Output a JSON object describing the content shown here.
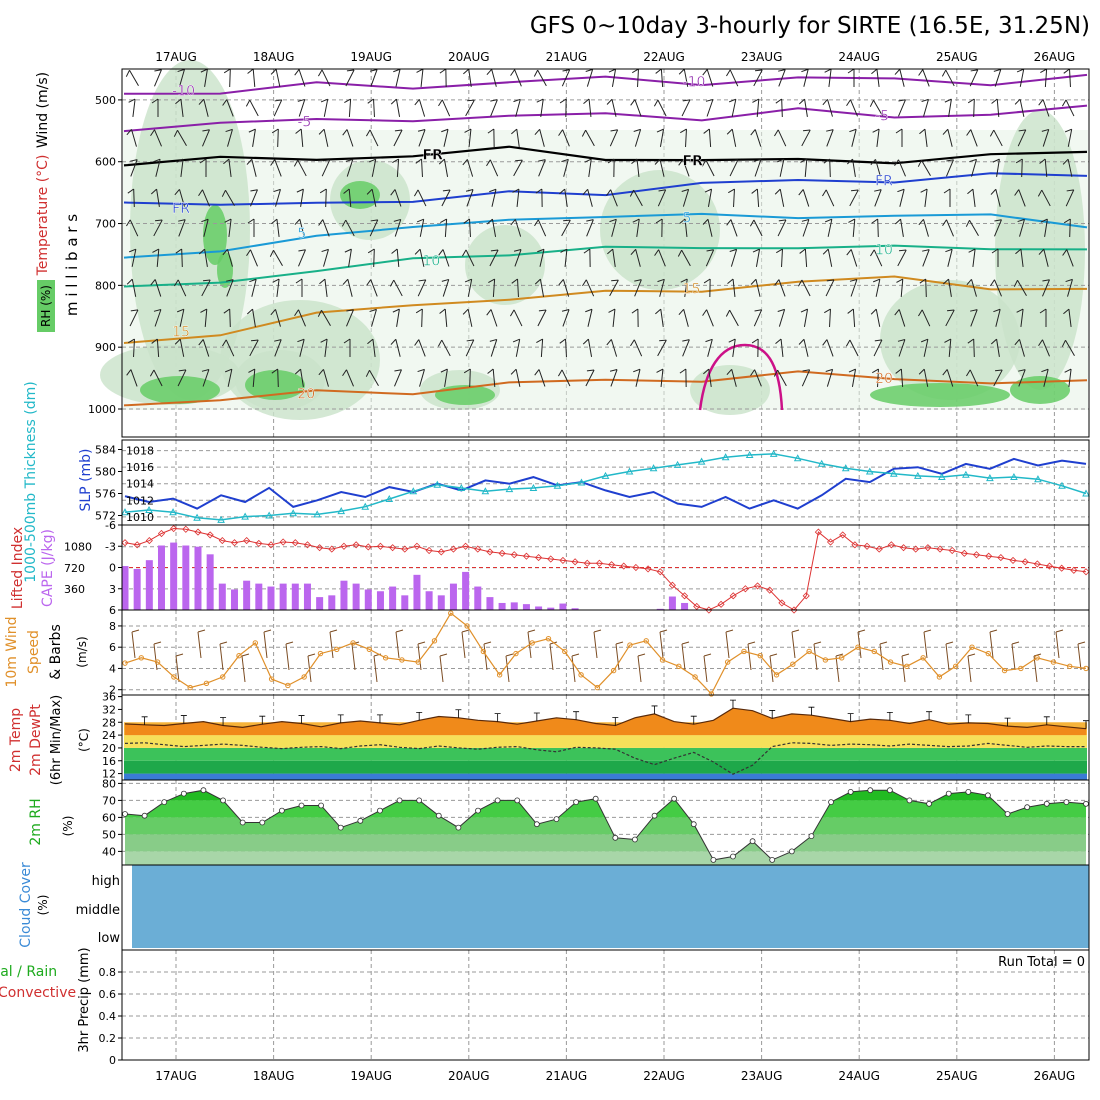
{
  "title": "GFS 0~10day 3-hourly for SIRTE (16.5E, 31.25N)",
  "x_axis": {
    "dates": [
      "17AUG",
      "18AUG",
      "19AUG",
      "20AUG",
      "21AUG",
      "22AUG",
      "23AUG",
      "24AUG",
      "25AUG",
      "26AUG"
    ]
  },
  "colors": {
    "frame": "#000000",
    "grid": "#9a9a9a",
    "rh_green_light": "#e6f2e6",
    "rh_green_mid": "#c9e2c9",
    "rh_green_dark": "#66cc66",
    "cloud_fill": "#6baed6",
    "rh_fill": "#22cc22",
    "temp_fill": "#f08a1a",
    "dew_fill": "#22aa44",
    "cape_bar": "#bb66ee",
    "lifted": "#dd3333",
    "slp": "#1f3fcf",
    "thickness": "#22b8c8",
    "wind_speed": "#e0902a"
  },
  "chart_data": [
    {
      "type": "area",
      "name": "upper_air",
      "ylabel_parts": [
        "Wind (m/s)",
        "Temperature (°C)",
        "m i l l i b a r s",
        "RH (%)"
      ],
      "yticks": [
        "500",
        "600",
        "700",
        "800",
        "900",
        "1000"
      ],
      "ylim": [
        450,
        1000
      ],
      "isotherm_labels": [
        "-10",
        "-10",
        "-5",
        "-5",
        "FR",
        "FR",
        "FR",
        "FR",
        "5",
        "5",
        "10",
        "10",
        "15",
        "15",
        "20",
        "20",
        "25"
      ],
      "isotherms": [
        {
          "label": "-10",
          "color": "#8a1fa8",
          "pressure": [
            490,
            485,
            478,
            478,
            470,
            468,
            470,
            466,
            468,
            470,
            465
          ]
        },
        {
          "label": "-5",
          "color": "#8a1fa8",
          "pressure": [
            545,
            538,
            535,
            528,
            530,
            522,
            528,
            520,
            525,
            522,
            515
          ]
        },
        {
          "label": "FR",
          "color": "#000000",
          "pressure": [
            600,
            598,
            595,
            588,
            582,
            592,
            598,
            600,
            596,
            592,
            585
          ]
        },
        {
          "label": "5",
          "color": "#1f3fcf",
          "pressure": [
            665,
            675,
            660,
            668,
            650,
            648,
            640,
            628,
            630,
            625,
            618
          ]
        },
        {
          "label": "10",
          "color": "#1a9ad6",
          "pressure": [
            760,
            745,
            715,
            712,
            690,
            688,
            690,
            685,
            690,
            688,
            700
          ]
        },
        {
          "label": "15",
          "color": "#18b088",
          "pressure": [
            808,
            790,
            778,
            760,
            745,
            742,
            740,
            735,
            742,
            738,
            740
          ]
        },
        {
          "label": "20",
          "color": "#d08a20",
          "pressure": [
            895,
            875,
            850,
            830,
            820,
            815,
            805,
            795,
            790,
            800,
            810
          ]
        },
        {
          "label": "25",
          "color": "#d06a20",
          "pressure": [
            990,
            985,
            975,
            970,
            960,
            955,
            950,
            945,
            950,
            955,
            960
          ]
        }
      ]
    },
    {
      "type": "line",
      "name": "slp_thickness",
      "ylabel_left": "1000-500mb Thickness (dm)",
      "ylabel_right": "SLP (mb)",
      "yticks_left": [
        "572",
        "576",
        "580",
        "584"
      ],
      "yticks_right": [
        "1010",
        "1012",
        "1014",
        "1016",
        "1018"
      ],
      "ylim_left": [
        571,
        585
      ],
      "ylim_right": [
        1009.5,
        1018.8
      ],
      "series": [
        {
          "name": "SLP",
          "unit": "mb",
          "values": [
            1012.5,
            1011.8,
            1012.2,
            1011.0,
            1012.6,
            1011.8,
            1013.5,
            1011.2,
            1012.0,
            1013.0,
            1012.4,
            1013.6,
            1013.0,
            1014.0,
            1013.2,
            1014.4,
            1014.0,
            1014.8,
            1013.8,
            1014.2,
            1013.2,
            1012.4,
            1013.0,
            1011.6,
            1011.2,
            1012.4,
            1011.0,
            1012.0,
            1011.0,
            1012.6,
            1014.6,
            1014.2,
            1015.8,
            1016.0,
            1015.2,
            1016.4,
            1015.8,
            1017.0,
            1016.2,
            1016.8,
            1016.4
          ]
        },
        {
          "name": "Thickness",
          "unit": "dm",
          "values": [
            572.6,
            573.0,
            572.6,
            571.6,
            571.2,
            571.8,
            572.0,
            572.4,
            572.2,
            572.8,
            573.6,
            575.0,
            576.4,
            577.6,
            577.0,
            576.4,
            576.8,
            577.0,
            577.4,
            578.0,
            579.2,
            580.0,
            580.6,
            581.2,
            581.8,
            582.6,
            583.0,
            583.2,
            582.4,
            581.4,
            580.6,
            580.0,
            579.6,
            579.2,
            579.0,
            579.4,
            578.8,
            579.0,
            578.6,
            577.4,
            576.0
          ]
        }
      ]
    },
    {
      "type": "bar",
      "name": "cape_lifted",
      "ylabel_left": "Lifted Index",
      "ylabel_right": "CAPE (J/kg)",
      "yticks_left": [
        "-6",
        "-3",
        "0",
        "3",
        "6"
      ],
      "yticks_right": [
        "360",
        "720",
        "1080"
      ],
      "ylim_cape": [
        0,
        1450
      ],
      "ylim_li": [
        6,
        -6
      ],
      "series": [
        {
          "name": "CAPE",
          "unit": "J/kg",
          "values": [
            750,
            700,
            850,
            1100,
            1150,
            1100,
            1080,
            950,
            450,
            350,
            500,
            450,
            400,
            450,
            450,
            450,
            220,
            250,
            500,
            450,
            350,
            320,
            400,
            250,
            600,
            320,
            250,
            450,
            650,
            400,
            220,
            120,
            130,
            100,
            60,
            40,
            110,
            30,
            0,
            0,
            0,
            0,
            0,
            0,
            20,
            230,
            120,
            0,
            0,
            0,
            0,
            0,
            0,
            0,
            0,
            0,
            0,
            0,
            0,
            0,
            0,
            0,
            0,
            0,
            0,
            0,
            0,
            0,
            0,
            0,
            0,
            0,
            0,
            0,
            0,
            0,
            0,
            0,
            0,
            0
          ]
        },
        {
          "name": "Lifted Index",
          "unit": "",
          "values": [
            -3.5,
            -3.2,
            -3.8,
            -4.8,
            -5.5,
            -5.4,
            -5.0,
            -4.6,
            -3.8,
            -3.5,
            -3.8,
            -3.4,
            -3.2,
            -3.6,
            -3.5,
            -3.2,
            -2.8,
            -2.6,
            -3.0,
            -3.2,
            -2.9,
            -3.0,
            -2.8,
            -2.6,
            -3.0,
            -2.4,
            -2.2,
            -2.6,
            -3.0,
            -2.6,
            -2.2,
            -2.0,
            -1.8,
            -1.6,
            -1.4,
            -1.2,
            -1.0,
            -0.8,
            -0.6,
            -0.6,
            -0.4,
            -0.2,
            0.0,
            0.2,
            0.6,
            2.5,
            4.0,
            5.5,
            6.0,
            5.2,
            4.0,
            3.0,
            2.6,
            3.2,
            5.0,
            6.0,
            4.0,
            -5.0,
            -3.6,
            -4.6,
            -3.2,
            -3.0,
            -2.6,
            -3.2,
            -2.8,
            -2.6,
            -2.8,
            -2.6,
            -2.4,
            -2.0,
            -1.8,
            -1.6,
            -1.4,
            -1.0,
            -0.8,
            -0.5,
            -0.2,
            0.1,
            0.4,
            0.6
          ]
        }
      ]
    },
    {
      "type": "line",
      "name": "wind10m",
      "ylabel_parts": [
        "10m Wind",
        "Speed",
        "& Barbs",
        "(m/s)"
      ],
      "yticks": [
        "2",
        "4",
        "6",
        "8"
      ],
      "ylim": [
        1.5,
        9.5
      ],
      "series": [
        {
          "name": "10m Wind Speed",
          "unit": "m/s",
          "values": [
            4.5,
            5.0,
            4.6,
            3.2,
            2.2,
            2.6,
            3.2,
            5.2,
            6.4,
            3.0,
            2.4,
            3.2,
            5.4,
            5.8,
            6.4,
            5.8,
            5.0,
            4.8,
            4.6,
            6.6,
            9.2,
            8.0,
            5.6,
            3.4,
            5.4,
            6.4,
            6.8,
            5.6,
            3.4,
            2.2,
            3.8,
            6.2,
            6.6,
            4.8,
            4.2,
            3.2,
            1.6,
            4.6,
            5.6,
            5.2,
            3.4,
            4.4,
            5.6,
            4.8,
            5.0,
            6.0,
            5.6,
            4.6,
            4.2,
            5.0,
            3.2,
            4.2,
            6.0,
            5.4,
            3.8,
            4.0,
            5.0,
            4.6,
            4.2,
            4.0
          ]
        }
      ]
    },
    {
      "type": "area",
      "name": "temperature2m",
      "ylabel_parts": [
        "2m Temp",
        "2m DewPt",
        "(6hr Min/Max)",
        "(°C)"
      ],
      "yticks": [
        "12",
        "16",
        "20",
        "24",
        "28",
        "32",
        "36"
      ],
      "ylim": [
        10,
        36.5
      ],
      "series": [
        {
          "name": "2m Temp",
          "unit": "°C",
          "values": [
            27.5,
            27.2,
            27.0,
            27.6,
            28.2,
            27.0,
            26.4,
            27.4,
            28.2,
            27.6,
            26.6,
            27.8,
            28.4,
            27.8,
            27.2,
            28.6,
            29.8,
            29.4,
            28.6,
            28.2,
            27.4,
            28.4,
            29.4,
            28.8,
            27.6,
            27.0,
            29.4,
            30.6,
            28.2,
            27.4,
            28.6,
            32.4,
            31.6,
            29.2,
            30.6,
            30.2,
            29.2,
            28.2,
            29.0,
            28.6,
            27.6,
            28.8,
            27.4,
            27.8,
            27.6,
            26.8,
            26.4,
            27.2,
            26.6,
            26.0
          ]
        },
        {
          "name": "2m DewPt",
          "unit": "°C",
          "values": [
            21.4,
            21.6,
            21.0,
            20.4,
            20.8,
            21.2,
            20.8,
            20.2,
            19.8,
            20.2,
            20.4,
            19.8,
            20.6,
            21.0,
            20.2,
            19.8,
            20.6,
            20.0,
            19.6,
            20.2,
            20.4,
            19.4,
            18.8,
            20.2,
            20.0,
            19.6,
            16.8,
            14.8,
            16.8,
            18.6,
            15.6,
            11.8,
            14.6,
            20.4,
            21.6,
            21.4,
            20.8,
            21.2,
            21.0,
            20.6,
            21.2,
            20.8,
            20.4,
            20.6,
            21.4,
            20.8,
            20.2,
            20.6,
            20.4,
            20.4
          ]
        }
      ]
    },
    {
      "type": "area",
      "name": "rh2m",
      "ylabel_parts": [
        "2m RH",
        "(%)"
      ],
      "yticks": [
        "40",
        "50",
        "60",
        "70",
        "80"
      ],
      "ylim": [
        32,
        82
      ],
      "series": [
        {
          "name": "2m RH",
          "unit": "%",
          "values": [
            62,
            61,
            69,
            74,
            76,
            70,
            57,
            57,
            64,
            67,
            67,
            54,
            58,
            64,
            70,
            70,
            61,
            54,
            64,
            70,
            70,
            56,
            59,
            69,
            71,
            48,
            47,
            61,
            71,
            56,
            35,
            37,
            46,
            35,
            40,
            49,
            69,
            75,
            76,
            76,
            70,
            68,
            74,
            75,
            73,
            62,
            66,
            68,
            69,
            68
          ]
        }
      ]
    },
    {
      "type": "area",
      "name": "cloud_cover",
      "ylabel_parts": [
        "Cloud Cover",
        "(%)"
      ],
      "yticks": [
        "high",
        "middle",
        "low"
      ]
    },
    {
      "type": "bar",
      "name": "precip3h",
      "ylabel_parts": [
        "Total / Rain",
        "Convective",
        "3hr Precip (mm)"
      ],
      "yticks": [
        "0",
        "0.2",
        "0.4",
        "0.6",
        "0.8"
      ],
      "ylim": [
        0,
        1.0
      ],
      "annotation": "Run Total = 0",
      "series": [
        {
          "name": "3hr Precip",
          "unit": "mm",
          "values": [
            0,
            0,
            0,
            0,
            0,
            0,
            0,
            0,
            0,
            0,
            0,
            0,
            0,
            0,
            0,
            0,
            0,
            0,
            0,
            0,
            0,
            0,
            0,
            0,
            0,
            0,
            0,
            0,
            0,
            0,
            0,
            0,
            0,
            0,
            0,
            0,
            0,
            0,
            0,
            0,
            0
          ]
        }
      ]
    }
  ]
}
